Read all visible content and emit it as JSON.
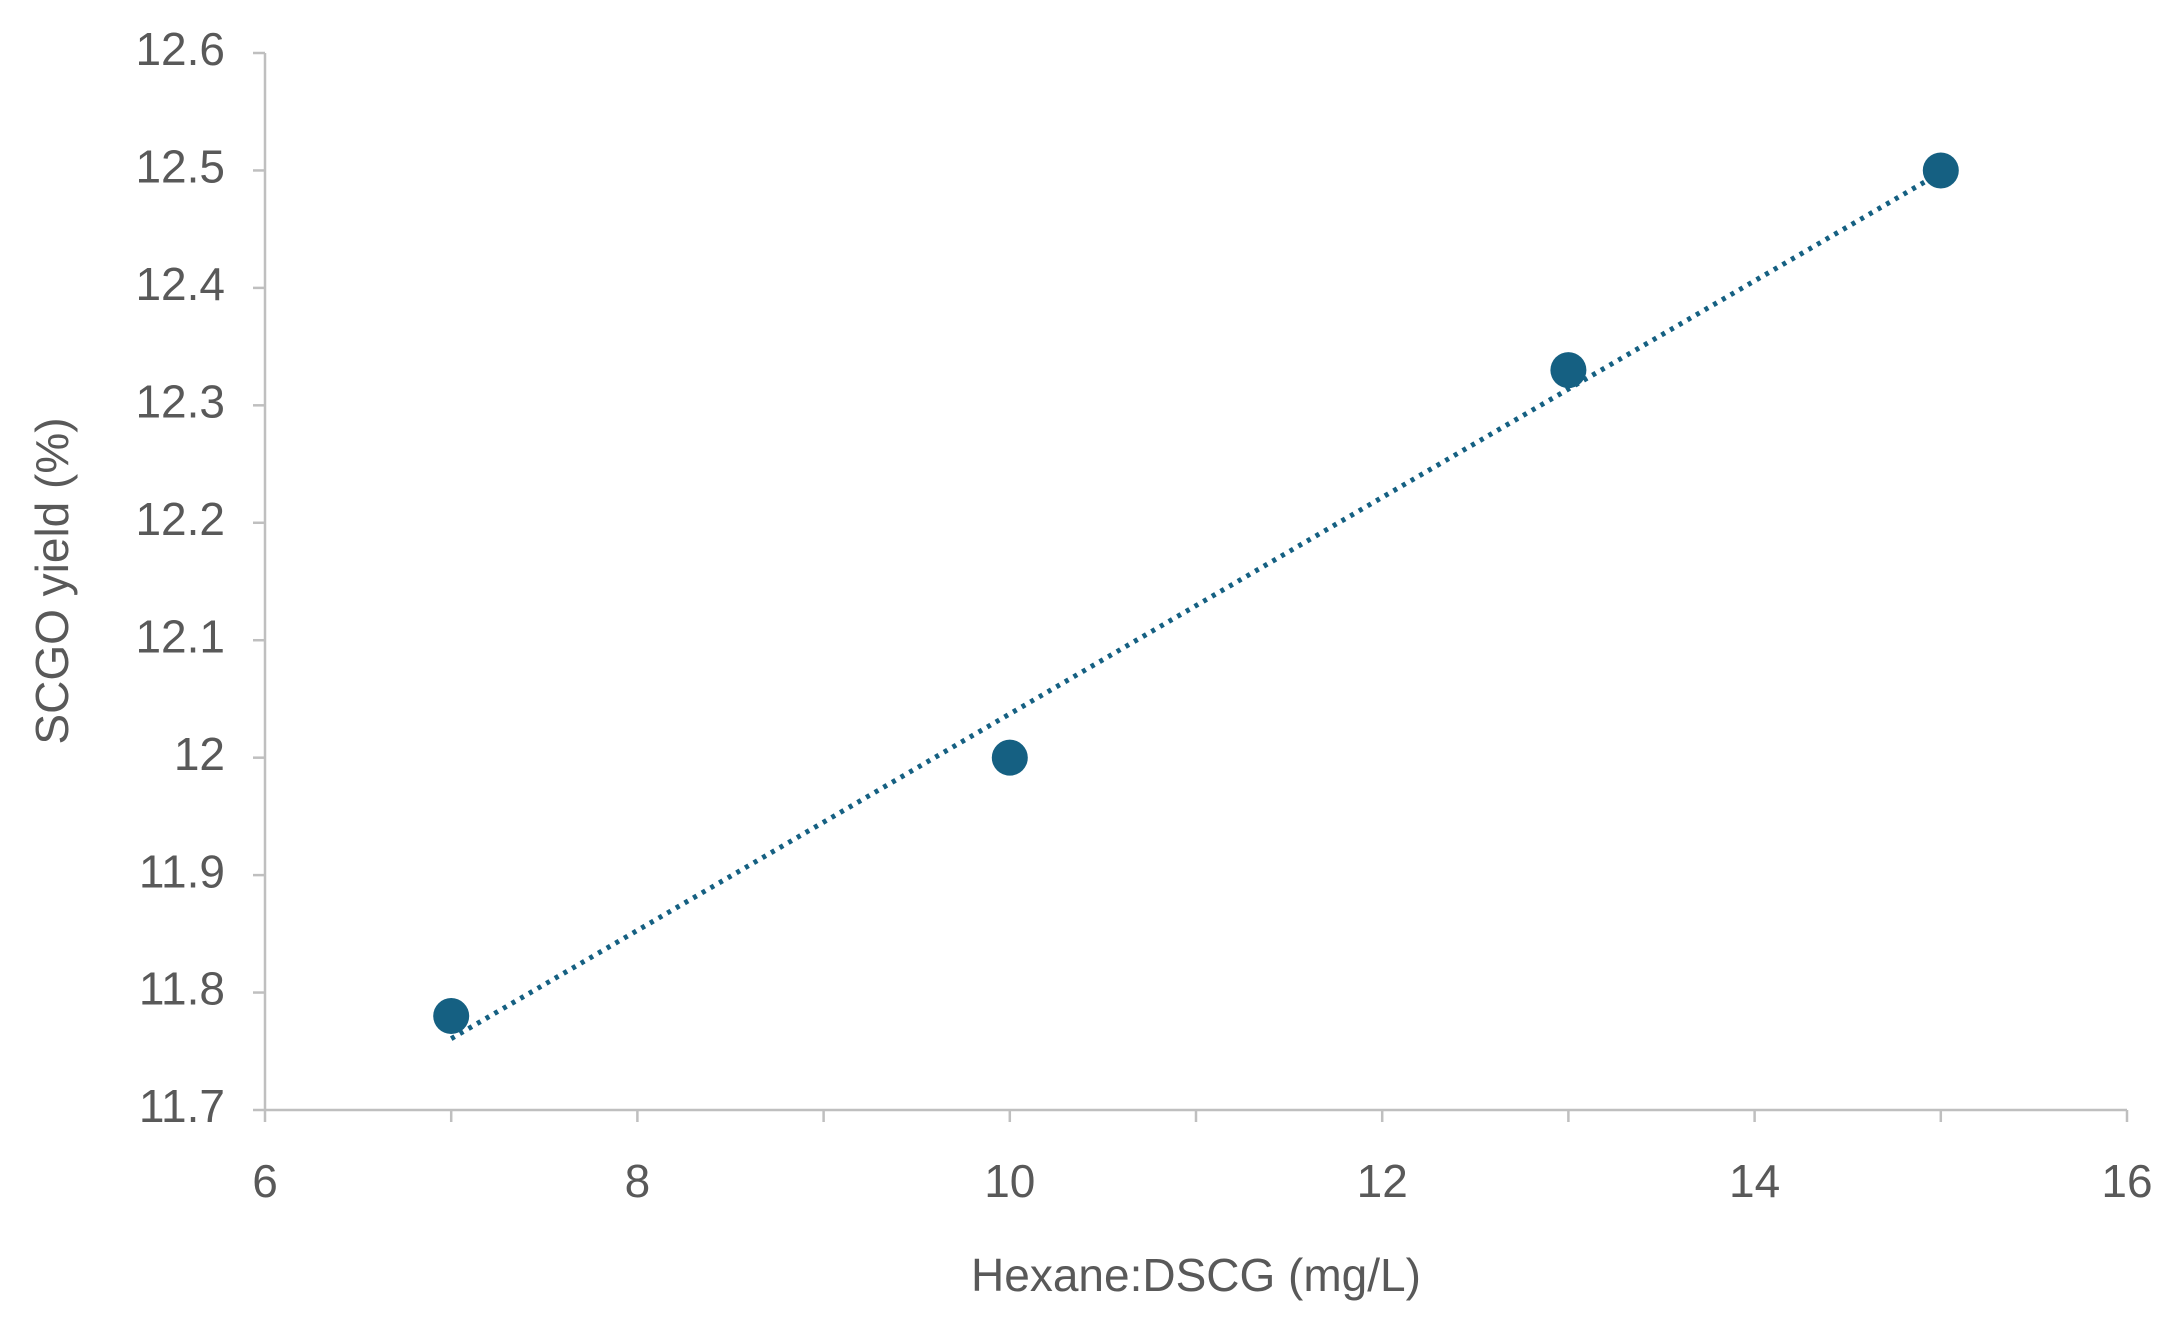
{
  "chart_data": {
    "type": "scatter",
    "x_label": "Hexane:DSCG (mg/L)",
    "y_label": "SCGO yield (%)",
    "series": [
      {
        "color": "#156082",
        "x": [
          7,
          10,
          13,
          15
        ],
        "values": [
          11.78,
          12.0,
          12.33,
          12.5
        ]
      }
    ],
    "trendline": "linear",
    "xlim": [
      6,
      16
    ],
    "xticks": [
      6,
      8,
      10,
      12,
      14,
      16
    ],
    "x_minor_ticks": [
      7,
      9,
      11,
      13,
      15
    ],
    "ylim": [
      11.7,
      12.6
    ],
    "yticks": [
      11.7,
      11.8,
      11.9,
      12,
      12.1,
      12.2,
      12.3,
      12.4,
      12.5,
      12.6
    ],
    "grid": false
  }
}
